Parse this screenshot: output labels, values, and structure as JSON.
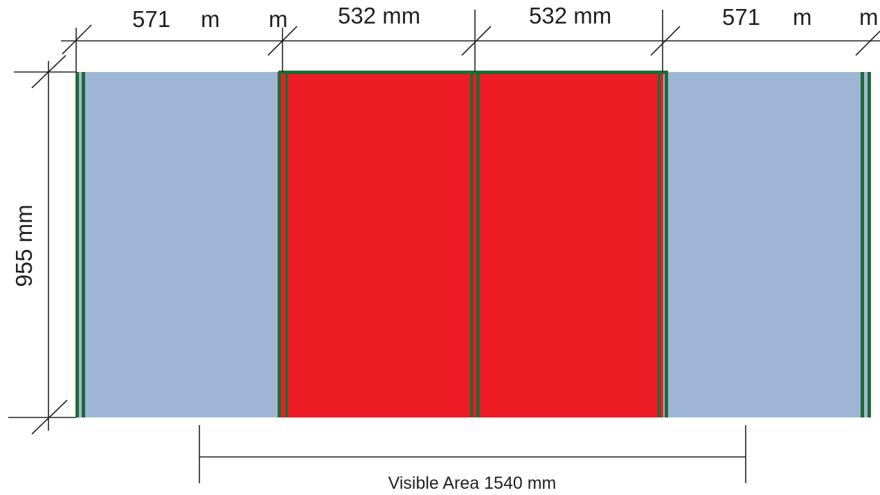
{
  "colors": {
    "side_panel": "#9fb6d6",
    "center_panel": "#ed1c24",
    "frame": "#1f6b35",
    "line": "#231f20"
  },
  "dimensions": {
    "top": [
      {
        "value": "571",
        "unit_a": "m",
        "unit_b": "m"
      },
      {
        "value": "532 mm"
      },
      {
        "value": "532 mm"
      },
      {
        "value": "571",
        "unit_a": "m",
        "unit_b": "m"
      }
    ],
    "height_label": "955 mm",
    "visible_area_label": "Visible Area 1540 mm"
  }
}
